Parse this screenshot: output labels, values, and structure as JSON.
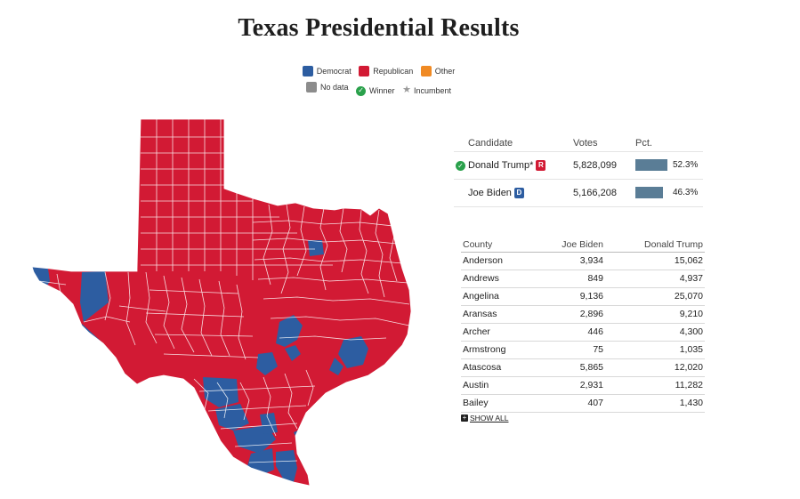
{
  "title": "Texas Presidential Results",
  "legend": {
    "democrat": "Democrat",
    "republican": "Republican",
    "other": "Other",
    "no_data": "No data",
    "winner": "Winner",
    "incumbent": "Incumbent"
  },
  "colors": {
    "democrat": "#2d5da1",
    "republican": "#d21a34",
    "other": "#f08a24",
    "no_data": "#8c8c8c",
    "winner": "#2aa14b",
    "bar": "#5a7d96"
  },
  "candidates": {
    "headers": {
      "candidate": "Candidate",
      "votes": "Votes",
      "pct": "Pct."
    },
    "rows": [
      {
        "name": "Donald Trump",
        "incumbent_mark": "*",
        "party": "R",
        "votes": "5,828,099",
        "pct": "52.3%",
        "share": 52.3,
        "winner": true
      },
      {
        "name": "Joe Biden",
        "incumbent_mark": "",
        "party": "D",
        "votes": "5,166,208",
        "pct": "46.3%",
        "share": 46.3,
        "winner": false
      }
    ]
  },
  "county_table": {
    "headers": {
      "county": "County",
      "biden": "Joe Biden",
      "trump": "Donald Trump"
    },
    "rows": [
      {
        "county": "Anderson",
        "biden": "3,934",
        "trump": "15,062"
      },
      {
        "county": "Andrews",
        "biden": "849",
        "trump": "4,937"
      },
      {
        "county": "Angelina",
        "biden": "9,136",
        "trump": "25,070"
      },
      {
        "county": "Aransas",
        "biden": "2,896",
        "trump": "9,210"
      },
      {
        "county": "Archer",
        "biden": "446",
        "trump": "4,300"
      },
      {
        "county": "Armstrong",
        "biden": "75",
        "trump": "1,035"
      },
      {
        "county": "Atascosa",
        "biden": "5,865",
        "trump": "12,020"
      },
      {
        "county": "Austin",
        "biden": "2,931",
        "trump": "11,282"
      },
      {
        "county": "Bailey",
        "biden": "407",
        "trump": "1,430"
      }
    ],
    "show_all": "SHOW ALL"
  }
}
